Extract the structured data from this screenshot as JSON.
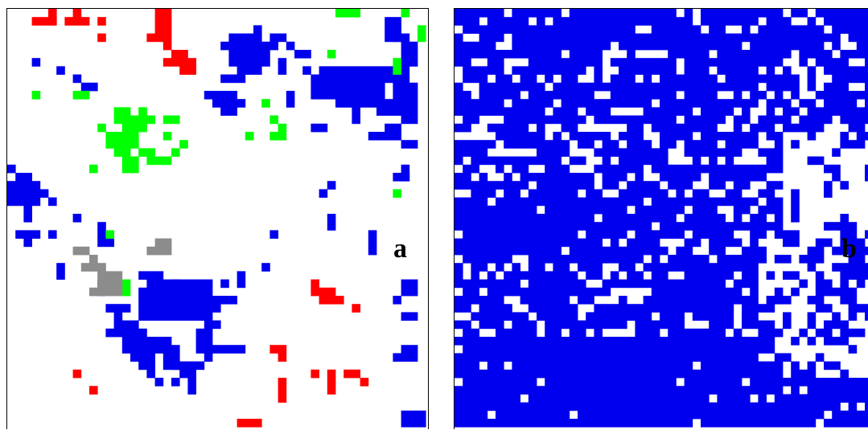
{
  "colors": {
    "background": "#ffffff",
    "blue": "#0000ee",
    "red": "#ff0000",
    "green": "#00ff00",
    "gray": "#8c8c8c",
    "border": "#000000"
  },
  "panels": {
    "a": {
      "label": "a"
    },
    "b": {
      "label": "b"
    }
  }
}
